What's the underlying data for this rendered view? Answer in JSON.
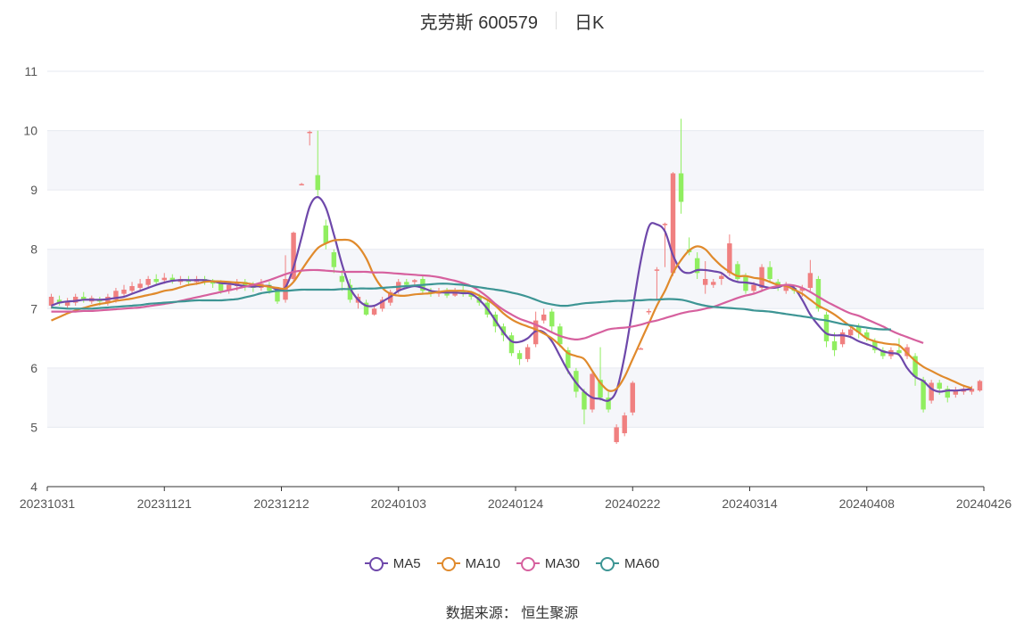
{
  "header": {
    "title": "克劳斯 600579",
    "period": "日K"
  },
  "source": "数据来源：  恒生聚源",
  "colors": {
    "up": "#f08080",
    "down": "#90ee60",
    "grid": "#e6e9f0",
    "band": "#f5f6fa",
    "axis": "#555555"
  },
  "chart_data": {
    "type": "candlestick",
    "title": "克劳斯 600579",
    "ylim": [
      4,
      11
    ],
    "yticks": [
      "4",
      "5",
      "6",
      "7",
      "8",
      "9",
      "10",
      "11"
    ],
    "x_tick_labels": [
      "20231031",
      "20231121",
      "20231212",
      "20240103",
      "20240124",
      "20240222",
      "20240314",
      "20240408",
      "20240426"
    ],
    "candles": [
      {
        "o": 7.05,
        "c": 7.2,
        "h": 7.25,
        "l": 7.0
      },
      {
        "o": 7.15,
        "c": 7.1,
        "h": 7.22,
        "l": 7.05
      },
      {
        "o": 7.05,
        "c": 7.12,
        "h": 7.18,
        "l": 7.0
      },
      {
        "o": 7.1,
        "c": 7.2,
        "h": 7.25,
        "l": 7.05
      },
      {
        "o": 7.2,
        "c": 7.15,
        "h": 7.28,
        "l": 7.1
      },
      {
        "o": 7.12,
        "c": 7.18,
        "h": 7.22,
        "l": 7.08
      },
      {
        "o": 7.15,
        "c": 7.12,
        "h": 7.2,
        "l": 7.05
      },
      {
        "o": 7.1,
        "c": 7.2,
        "h": 7.25,
        "l": 7.05
      },
      {
        "o": 7.15,
        "c": 7.3,
        "h": 7.35,
        "l": 7.1
      },
      {
        "o": 7.25,
        "c": 7.32,
        "h": 7.4,
        "l": 7.2
      },
      {
        "o": 7.3,
        "c": 7.38,
        "h": 7.45,
        "l": 7.25
      },
      {
        "o": 7.35,
        "c": 7.42,
        "h": 7.5,
        "l": 7.3
      },
      {
        "o": 7.4,
        "c": 7.5,
        "h": 7.55,
        "l": 7.35
      },
      {
        "o": 7.5,
        "c": 7.45,
        "h": 7.58,
        "l": 7.4
      },
      {
        "o": 7.48,
        "c": 7.52,
        "h": 7.6,
        "l": 7.42
      },
      {
        "o": 7.52,
        "c": 7.48,
        "h": 7.58,
        "l": 7.42
      },
      {
        "o": 7.45,
        "c": 7.5,
        "h": 7.55,
        "l": 7.4
      },
      {
        "o": 7.48,
        "c": 7.45,
        "h": 7.55,
        "l": 7.38
      },
      {
        "o": 7.45,
        "c": 7.5,
        "h": 7.55,
        "l": 7.4
      },
      {
        "o": 7.5,
        "c": 7.46,
        "h": 7.55,
        "l": 7.4
      },
      {
        "o": 7.48,
        "c": 7.42,
        "h": 7.5,
        "l": 7.35
      },
      {
        "o": 7.45,
        "c": 7.3,
        "h": 7.48,
        "l": 7.25
      },
      {
        "o": 7.3,
        "c": 7.4,
        "h": 7.45,
        "l": 7.25
      },
      {
        "o": 7.38,
        "c": 7.45,
        "h": 7.5,
        "l": 7.3
      },
      {
        "o": 7.45,
        "c": 7.38,
        "h": 7.5,
        "l": 7.3
      },
      {
        "o": 7.4,
        "c": 7.35,
        "h": 7.45,
        "l": 7.28
      },
      {
        "o": 7.35,
        "c": 7.42,
        "h": 7.5,
        "l": 7.3
      },
      {
        "o": 7.4,
        "c": 7.3,
        "h": 7.45,
        "l": 7.25
      },
      {
        "o": 7.3,
        "c": 7.12,
        "h": 7.35,
        "l": 7.08
      },
      {
        "o": 7.15,
        "c": 7.5,
        "h": 7.9,
        "l": 7.1
      },
      {
        "o": 7.5,
        "c": 8.28,
        "h": 8.3,
        "l": 7.45
      },
      {
        "o": 9.1,
        "c": 9.1,
        "h": 9.12,
        "l": 9.08
      },
      {
        "o": 9.98,
        "c": 9.98,
        "h": 10.0,
        "l": 9.75
      },
      {
        "o": 9.25,
        "c": 9.0,
        "h": 10.0,
        "l": 8.9
      },
      {
        "o": 8.4,
        "c": 8.1,
        "h": 8.5,
        "l": 8.0
      },
      {
        "o": 7.95,
        "c": 7.7,
        "h": 8.0,
        "l": 7.6
      },
      {
        "o": 7.55,
        "c": 7.45,
        "h": 7.65,
        "l": 7.3
      },
      {
        "o": 7.4,
        "c": 7.15,
        "h": 7.5,
        "l": 7.1
      },
      {
        "o": 7.1,
        "c": 7.2,
        "h": 7.25,
        "l": 7.0
      },
      {
        "o": 7.1,
        "c": 6.9,
        "h": 7.15,
        "l": 6.88
      },
      {
        "o": 6.9,
        "c": 7.0,
        "h": 7.05,
        "l": 6.88
      },
      {
        "o": 7.0,
        "c": 7.15,
        "h": 7.2,
        "l": 6.95
      },
      {
        "o": 7.1,
        "c": 7.28,
        "h": 7.32,
        "l": 7.05
      },
      {
        "o": 7.3,
        "c": 7.45,
        "h": 7.5,
        "l": 7.25
      },
      {
        "o": 7.45,
        "c": 7.4,
        "h": 7.5,
        "l": 7.35
      },
      {
        "o": 7.45,
        "c": 7.48,
        "h": 7.5,
        "l": 7.4
      },
      {
        "o": 7.5,
        "c": 7.3,
        "h": 7.55,
        "l": 7.25
      },
      {
        "o": 7.3,
        "c": 7.25,
        "h": 7.35,
        "l": 7.2
      },
      {
        "o": 7.25,
        "c": 7.3,
        "h": 7.35,
        "l": 7.2
      },
      {
        "o": 7.3,
        "c": 7.22,
        "h": 7.35,
        "l": 7.18
      },
      {
        "o": 7.22,
        "c": 7.3,
        "h": 7.35,
        "l": 7.2
      },
      {
        "o": 7.3,
        "c": 7.25,
        "h": 7.38,
        "l": 7.2
      },
      {
        "o": 7.25,
        "c": 7.2,
        "h": 7.3,
        "l": 7.15
      },
      {
        "o": 7.2,
        "c": 7.1,
        "h": 7.25,
        "l": 7.05
      },
      {
        "o": 7.1,
        "c": 6.9,
        "h": 7.15,
        "l": 6.85
      },
      {
        "o": 6.9,
        "c": 6.7,
        "h": 6.95,
        "l": 6.6
      },
      {
        "o": 6.7,
        "c": 6.55,
        "h": 6.75,
        "l": 6.45
      },
      {
        "o": 6.55,
        "c": 6.25,
        "h": 6.6,
        "l": 6.2
      },
      {
        "o": 6.25,
        "c": 6.15,
        "h": 6.3,
        "l": 6.05
      },
      {
        "o": 6.15,
        "c": 6.35,
        "h": 6.4,
        "l": 6.1
      },
      {
        "o": 6.4,
        "c": 6.8,
        "h": 6.95,
        "l": 6.35
      },
      {
        "o": 6.8,
        "c": 6.9,
        "h": 7.0,
        "l": 6.75
      },
      {
        "o": 6.95,
        "c": 6.7,
        "h": 7.0,
        "l": 6.6
      },
      {
        "o": 6.7,
        "c": 6.4,
        "h": 6.75,
        "l": 6.35
      },
      {
        "o": 6.3,
        "c": 6.0,
        "h": 6.35,
        "l": 5.9
      },
      {
        "o": 5.95,
        "c": 5.6,
        "h": 6.0,
        "l": 5.5
      },
      {
        "o": 5.6,
        "c": 5.3,
        "h": 5.65,
        "l": 5.05
      },
      {
        "o": 5.3,
        "c": 5.9,
        "h": 5.95,
        "l": 5.25
      },
      {
        "o": 5.8,
        "c": 5.5,
        "h": 6.35,
        "l": 5.45
      },
      {
        "o": 5.5,
        "c": 5.3,
        "h": 5.6,
        "l": 5.25
      },
      {
        "o": 4.75,
        "c": 5.0,
        "h": 5.05,
        "l": 4.72
      },
      {
        "o": 4.9,
        "c": 5.2,
        "h": 5.25,
        "l": 4.85
      },
      {
        "o": 5.25,
        "c": 5.75,
        "h": 5.78,
        "l": 5.2
      },
      {
        "o": 6.33,
        "c": 6.33,
        "h": 6.35,
        "l": 6.32
      },
      {
        "o": 6.95,
        "c": 6.96,
        "h": 7.0,
        "l": 6.9
      },
      {
        "o": 7.65,
        "c": 7.66,
        "h": 7.7,
        "l": 7.15
      },
      {
        "o": 8.42,
        "c": 8.43,
        "h": 8.45,
        "l": 7.7
      },
      {
        "o": 7.6,
        "c": 9.28,
        "h": 9.3,
        "l": 7.55
      },
      {
        "o": 9.28,
        "c": 8.8,
        "h": 10.2,
        "l": 8.6
      },
      {
        "o": 8.0,
        "c": 7.95,
        "h": 8.2,
        "l": 7.9
      },
      {
        "o": 7.85,
        "c": 7.6,
        "h": 7.95,
        "l": 7.5
      },
      {
        "o": 7.4,
        "c": 7.5,
        "h": 7.8,
        "l": 7.25
      },
      {
        "o": 7.4,
        "c": 7.45,
        "h": 7.5,
        "l": 7.35
      },
      {
        "o": 7.5,
        "c": 7.55,
        "h": 7.6,
        "l": 7.4
      },
      {
        "o": 7.6,
        "c": 8.1,
        "h": 8.25,
        "l": 7.55
      },
      {
        "o": 7.75,
        "c": 7.5,
        "h": 7.8,
        "l": 7.45
      },
      {
        "o": 7.55,
        "c": 7.3,
        "h": 7.6,
        "l": 7.25
      },
      {
        "o": 7.3,
        "c": 7.4,
        "h": 7.45,
        "l": 7.25
      },
      {
        "o": 7.35,
        "c": 7.7,
        "h": 7.75,
        "l": 7.3
      },
      {
        "o": 7.7,
        "c": 7.5,
        "h": 7.8,
        "l": 7.45
      },
      {
        "o": 7.45,
        "c": 7.35,
        "h": 7.5,
        "l": 7.3
      },
      {
        "o": 7.3,
        "c": 7.4,
        "h": 7.45,
        "l": 7.25
      },
      {
        "o": 7.35,
        "c": 7.3,
        "h": 7.4,
        "l": 7.25
      },
      {
        "o": 7.3,
        "c": 7.35,
        "h": 7.4,
        "l": 7.2
      },
      {
        "o": 7.35,
        "c": 7.6,
        "h": 7.82,
        "l": 7.3
      },
      {
        "o": 7.5,
        "c": 7.0,
        "h": 7.55,
        "l": 6.95
      },
      {
        "o": 6.9,
        "c": 6.45,
        "h": 6.95,
        "l": 6.35
      },
      {
        "o": 6.45,
        "c": 6.3,
        "h": 6.6,
        "l": 6.2
      },
      {
        "o": 6.4,
        "c": 6.6,
        "h": 6.65,
        "l": 6.35
      },
      {
        "o": 6.55,
        "c": 6.65,
        "h": 6.7,
        "l": 6.5
      },
      {
        "o": 6.7,
        "c": 6.6,
        "h": 6.75,
        "l": 6.5
      },
      {
        "o": 6.6,
        "c": 6.5,
        "h": 6.65,
        "l": 6.45
      },
      {
        "o": 6.45,
        "c": 6.3,
        "h": 6.5,
        "l": 6.25
      },
      {
        "o": 6.3,
        "c": 6.2,
        "h": 6.35,
        "l": 6.15
      },
      {
        "o": 6.2,
        "c": 6.3,
        "h": 6.35,
        "l": 6.15
      },
      {
        "o": 6.3,
        "c": 6.25,
        "h": 6.5,
        "l": 6.2
      },
      {
        "o": 6.2,
        "c": 6.35,
        "h": 6.4,
        "l": 6.15
      },
      {
        "o": 6.2,
        "c": 5.85,
        "h": 6.25,
        "l": 5.7
      },
      {
        "o": 5.8,
        "c": 5.3,
        "h": 5.85,
        "l": 5.25
      },
      {
        "o": 5.45,
        "c": 5.75,
        "h": 5.8,
        "l": 5.4
      },
      {
        "o": 5.75,
        "c": 5.65,
        "h": 5.8,
        "l": 5.55
      },
      {
        "o": 5.65,
        "c": 5.5,
        "h": 5.7,
        "l": 5.42
      },
      {
        "o": 5.55,
        "c": 5.62,
        "h": 5.68,
        "l": 5.5
      },
      {
        "o": 5.6,
        "c": 5.65,
        "h": 5.7,
        "l": 5.55
      },
      {
        "o": 5.6,
        "c": 5.65,
        "h": 5.7,
        "l": 5.55
      },
      {
        "o": 5.62,
        "c": 5.78,
        "h": 5.8,
        "l": 5.6
      }
    ],
    "series": [
      {
        "name": "MA5",
        "color": "#6e48aa",
        "values": [
          7.05,
          7.1,
          7.12,
          7.13,
          7.15,
          7.15,
          7.15,
          7.16,
          7.18,
          7.2,
          7.25,
          7.3,
          7.35,
          7.4,
          7.44,
          7.47,
          7.48,
          7.48,
          7.48,
          7.48,
          7.46,
          7.43,
          7.42,
          7.4,
          7.38,
          7.37,
          7.38,
          7.38,
          7.32,
          7.36,
          7.7,
          8.2,
          8.72,
          8.88,
          8.7,
          8.25,
          7.75,
          7.35,
          7.15,
          7.05,
          7.05,
          7.12,
          7.2,
          7.3,
          7.35,
          7.38,
          7.35,
          7.3,
          7.28,
          7.27,
          7.27,
          7.26,
          7.25,
          7.15,
          7.0,
          6.8,
          6.6,
          6.45,
          6.44,
          6.5,
          6.62,
          6.6,
          6.45,
          6.2,
          5.95,
          5.75,
          5.6,
          5.5,
          5.48,
          5.45,
          5.62,
          6.2,
          7.0,
          7.8,
          8.38,
          8.42,
          8.3,
          7.9,
          7.65,
          7.6,
          7.65,
          7.65,
          7.63,
          7.6,
          7.5,
          7.45,
          7.44,
          7.42,
          7.38,
          7.35,
          7.36,
          7.4,
          7.35,
          7.15,
          6.9,
          6.72,
          6.58,
          6.55,
          6.55,
          6.52,
          6.45,
          6.4,
          6.35,
          6.28,
          6.25,
          6.22,
          6.0,
          5.85,
          5.78,
          5.65,
          5.6,
          5.62,
          5.62,
          5.63,
          5.65
        ]
      },
      {
        "name": "MA10",
        "color": "#e08a2c",
        "values": [
          6.8,
          6.86,
          6.92,
          6.97,
          7.01,
          7.05,
          7.08,
          7.1,
          7.13,
          7.15,
          7.17,
          7.2,
          7.23,
          7.26,
          7.3,
          7.32,
          7.36,
          7.4,
          7.42,
          7.45,
          7.46,
          7.46,
          7.45,
          7.44,
          7.43,
          7.41,
          7.39,
          7.37,
          7.35,
          7.34,
          7.45,
          7.65,
          7.85,
          8.02,
          8.1,
          8.15,
          8.16,
          8.15,
          8.05,
          7.85,
          7.55,
          7.35,
          7.25,
          7.22,
          7.22,
          7.24,
          7.25,
          7.26,
          7.28,
          7.3,
          7.3,
          7.3,
          7.28,
          7.22,
          7.15,
          7.05,
          6.92,
          6.82,
          6.75,
          6.7,
          6.65,
          6.58,
          6.5,
          6.38,
          6.25,
          6.2,
          6.15,
          5.95,
          5.75,
          5.62,
          5.65,
          5.85,
          6.15,
          6.45,
          6.75,
          7.05,
          7.3,
          7.6,
          7.82,
          7.98,
          8.05,
          8.0,
          7.85,
          7.72,
          7.62,
          7.55,
          7.55,
          7.52,
          7.5,
          7.45,
          7.4,
          7.38,
          7.32,
          7.25,
          7.15,
          7.05,
          6.98,
          6.9,
          6.8,
          6.7,
          6.6,
          6.5,
          6.45,
          6.42,
          6.4,
          6.38,
          6.25,
          6.12,
          6.02,
          5.95,
          5.88,
          5.82,
          5.76,
          5.7,
          5.66
        ]
      },
      {
        "name": "MA30",
        "color": "#d6609e",
        "values": [
          6.95,
          6.95,
          6.95,
          6.95,
          6.96,
          6.96,
          6.97,
          6.98,
          6.99,
          7.0,
          7.01,
          7.02,
          7.04,
          7.06,
          7.08,
          7.1,
          7.13,
          7.16,
          7.19,
          7.22,
          7.25,
          7.28,
          7.31,
          7.34,
          7.37,
          7.4,
          7.44,
          7.48,
          7.53,
          7.58,
          7.62,
          7.64,
          7.65,
          7.65,
          7.64,
          7.63,
          7.62,
          7.62,
          7.62,
          7.62,
          7.61,
          7.61,
          7.6,
          7.59,
          7.58,
          7.57,
          7.56,
          7.55,
          7.53,
          7.5,
          7.47,
          7.43,
          7.38,
          7.3,
          7.2,
          7.08,
          6.98,
          6.9,
          6.83,
          6.78,
          6.73,
          6.67,
          6.6,
          6.54,
          6.5,
          6.48,
          6.5,
          6.55,
          6.6,
          6.65,
          6.67,
          6.68,
          6.7,
          6.73,
          6.77,
          6.8,
          6.84,
          6.88,
          6.92,
          6.95,
          6.97,
          7.0,
          7.03,
          7.08,
          7.13,
          7.18,
          7.22,
          7.25,
          7.3,
          7.35,
          7.38,
          7.4,
          7.39,
          7.35,
          7.28,
          7.2,
          7.12,
          7.05,
          6.98,
          6.92,
          6.88,
          6.82,
          6.76,
          6.7,
          6.63,
          6.57,
          6.52,
          6.47,
          6.42
        ]
      },
      {
        "name": "MA60",
        "color": "#3d9594",
        "values": [
          7.02,
          7.01,
          7.0,
          7.0,
          7.0,
          7.0,
          7.01,
          7.02,
          7.03,
          7.04,
          7.05,
          7.06,
          7.08,
          7.09,
          7.1,
          7.11,
          7.12,
          7.13,
          7.14,
          7.14,
          7.14,
          7.14,
          7.15,
          7.16,
          7.19,
          7.22,
          7.26,
          7.28,
          7.3,
          7.3,
          7.31,
          7.32,
          7.32,
          7.32,
          7.32,
          7.32,
          7.33,
          7.33,
          7.34,
          7.34,
          7.34,
          7.35,
          7.36,
          7.37,
          7.38,
          7.39,
          7.4,
          7.41,
          7.42,
          7.42,
          7.41,
          7.4,
          7.38,
          7.36,
          7.34,
          7.32,
          7.3,
          7.27,
          7.24,
          7.2,
          7.15,
          7.1,
          7.07,
          7.05,
          7.05,
          7.07,
          7.09,
          7.1,
          7.11,
          7.12,
          7.13,
          7.13,
          7.14,
          7.14,
          7.15,
          7.15,
          7.16,
          7.16,
          7.15,
          7.12,
          7.08,
          7.05,
          7.03,
          7.02,
          7.01,
          7.0,
          6.99,
          6.97,
          6.96,
          6.95,
          6.93,
          6.91,
          6.89,
          6.87,
          6.85,
          6.82,
          6.8,
          6.77,
          6.74,
          6.72,
          6.7,
          6.68,
          6.66,
          6.65,
          6.65
        ]
      }
    ]
  }
}
